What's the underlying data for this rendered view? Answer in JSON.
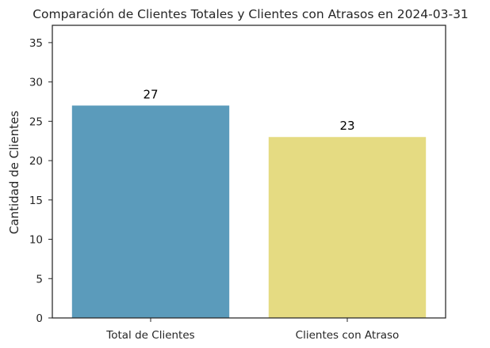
{
  "chart_data": {
    "type": "bar",
    "title": "Comparación de Clientes Totales y Clientes con Atrasos en 2024-03-31",
    "xlabel": "",
    "ylabel": "Cantidad de Clientes",
    "categories": [
      "Total de Clientes",
      "Clientes con Atraso"
    ],
    "values": [
      27,
      23
    ],
    "data_labels": [
      "27",
      "23"
    ],
    "colors": [
      "#5b9bbb",
      "#e5db82"
    ],
    "ylim": [
      0,
      37.2
    ],
    "yticks": [
      0,
      5,
      10,
      15,
      20,
      25,
      30,
      35
    ],
    "grid": false,
    "legend": "none"
  }
}
